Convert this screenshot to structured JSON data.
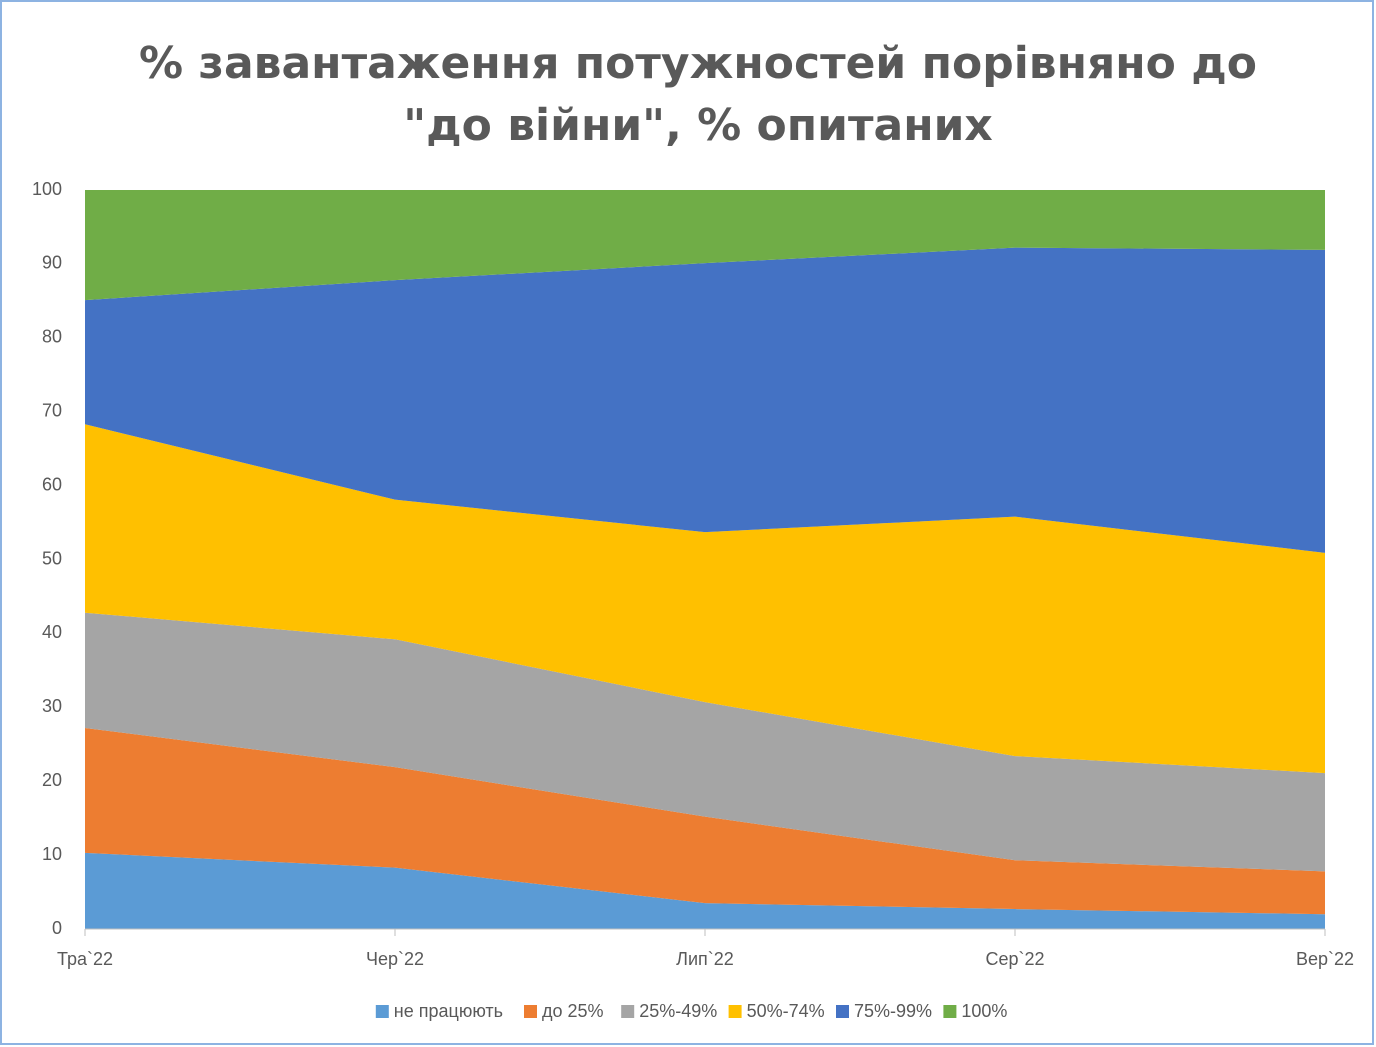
{
  "chart_data": {
    "type": "stacked_area",
    "title": [
      "% завантаження потужностей порівняно до",
      "\"до війни\", % опитаних"
    ],
    "categories": [
      "Тра`22",
      "Чер`22",
      "Лип`22",
      "Сер`22",
      "Вер`22"
    ],
    "series": [
      {
        "name": "не працюють",
        "color": "#5b9bd5",
        "values": [
          10.3,
          8.3,
          3.5,
          2.7,
          2.0
        ]
      },
      {
        "name": "до 25%",
        "color": "#ed7d31",
        "values": [
          16.9,
          13.6,
          11.7,
          6.6,
          5.8
        ]
      },
      {
        "name": "25%-49%",
        "color": "#a5a5a5",
        "values": [
          15.6,
          17.3,
          15.5,
          14.1,
          13.3
        ]
      },
      {
        "name": "50%-74%",
        "color": "#ffc000",
        "values": [
          25.5,
          18.9,
          23.0,
          32.4,
          29.8
        ]
      },
      {
        "name": "75%-99%",
        "color": "#4472c4",
        "values": [
          16.8,
          29.7,
          36.4,
          36.4,
          41.0
        ]
      },
      {
        "name": "100%",
        "color": "#70ad47",
        "values": [
          14.9,
          12.2,
          9.9,
          7.8,
          8.1
        ]
      }
    ],
    "ylim": [
      0,
      100
    ],
    "yticks": [
      0,
      10,
      20,
      30,
      40,
      50,
      60,
      70,
      80,
      90,
      100
    ],
    "grid": false,
    "legend": "bottom"
  }
}
